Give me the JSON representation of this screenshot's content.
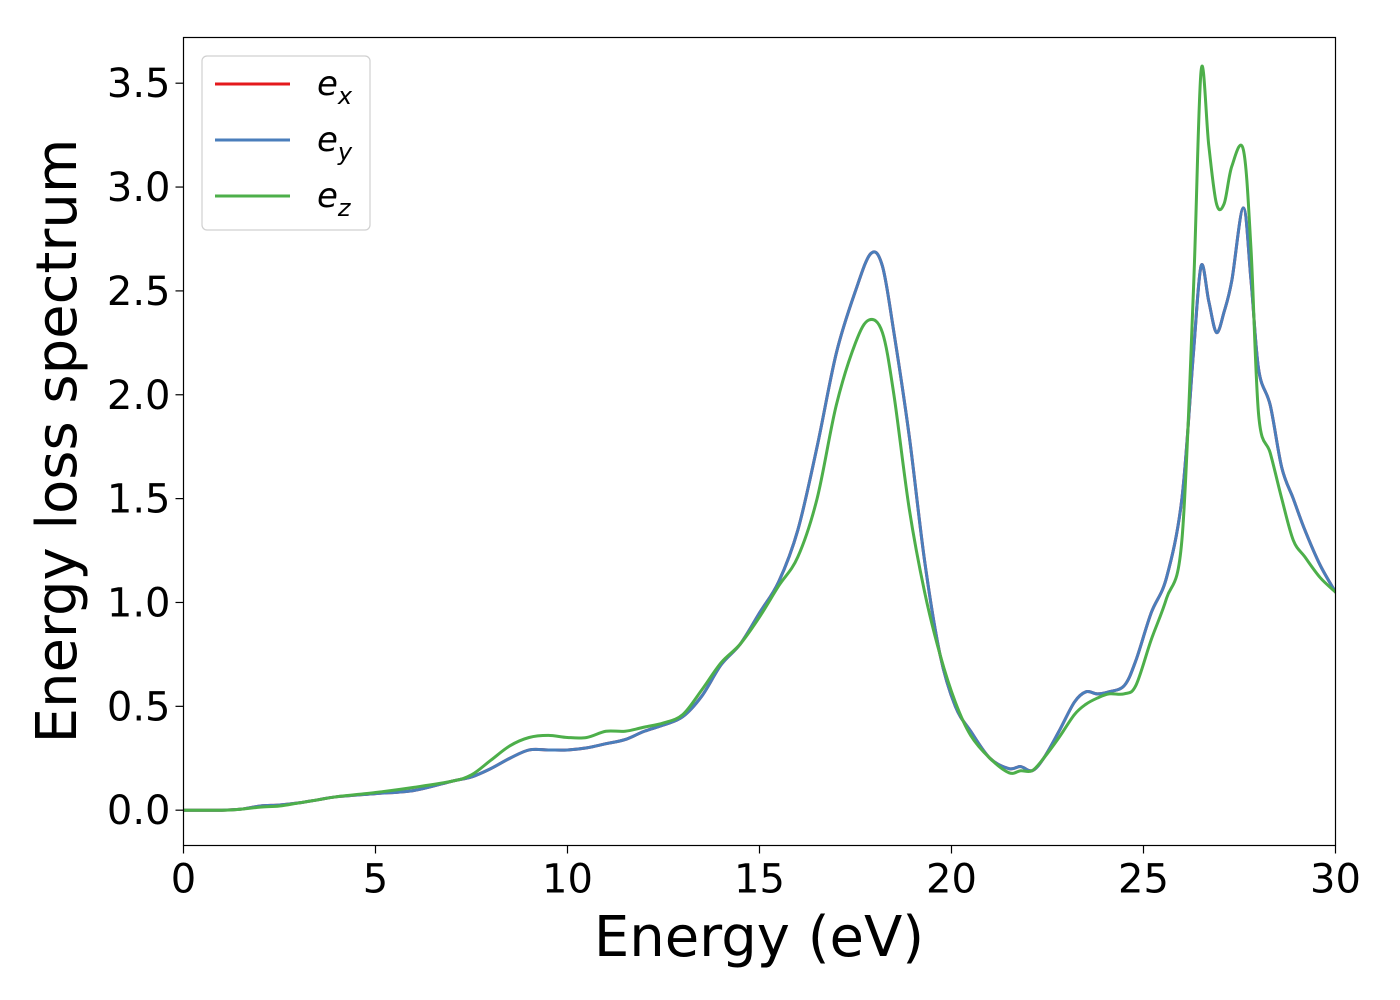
{
  "chart_data": {
    "type": "line",
    "title": "",
    "xlabel": "Energy (eV)",
    "ylabel": "Energy loss spectrum",
    "xlim": [
      0,
      30
    ],
    "ylim": [
      -0.17,
      3.72
    ],
    "xticks": [
      0,
      5,
      10,
      15,
      20,
      25,
      30
    ],
    "yticks": [
      0.0,
      0.5,
      1.0,
      1.5,
      2.0,
      2.5,
      3.0,
      3.5
    ],
    "xtick_labels": [
      "0",
      "5",
      "10",
      "15",
      "20",
      "25",
      "30"
    ],
    "ytick_labels": [
      "0.0",
      "0.5",
      "1.0",
      "1.5",
      "2.0",
      "2.5",
      "3.0",
      "3.5"
    ],
    "grid": false,
    "legend_position": "upper-left",
    "series": [
      {
        "name": "e_x",
        "legend_base": "e",
        "legend_sub": "x",
        "color": "#e41a1c",
        "x": [
          0,
          1,
          1.5,
          2,
          2.5,
          3,
          3.5,
          4,
          5,
          6,
          7,
          7.5,
          8,
          8.5,
          9,
          9.5,
          10,
          10.5,
          11,
          11.5,
          12,
          12.5,
          13,
          13.5,
          14,
          14.5,
          15,
          15.5,
          16,
          16.5,
          17,
          17.5,
          17.9,
          18.2,
          18.5,
          18.9,
          19.3,
          19.7,
          20.1,
          20.5,
          21,
          21.5,
          21.8,
          22.1,
          22.4,
          22.8,
          23.2,
          23.5,
          23.8,
          24.1,
          24.5,
          24.8,
          25.2,
          25.6,
          26,
          26.3,
          26.5,
          26.7,
          26.9,
          27.1,
          27.3,
          27.6,
          27.8,
          28,
          28.3,
          28.6,
          28.9,
          29.2,
          29.6,
          30
        ],
        "values": [
          0,
          0,
          0.005,
          0.02,
          0.025,
          0.035,
          0.05,
          0.065,
          0.08,
          0.095,
          0.14,
          0.16,
          0.2,
          0.25,
          0.29,
          0.29,
          0.29,
          0.3,
          0.32,
          0.34,
          0.38,
          0.41,
          0.45,
          0.55,
          0.7,
          0.8,
          0.95,
          1.1,
          1.35,
          1.75,
          2.2,
          2.5,
          2.68,
          2.62,
          2.3,
          1.8,
          1.2,
          0.75,
          0.5,
          0.38,
          0.25,
          0.2,
          0.21,
          0.19,
          0.25,
          0.38,
          0.52,
          0.57,
          0.56,
          0.57,
          0.6,
          0.72,
          0.95,
          1.12,
          1.5,
          2.2,
          2.62,
          2.45,
          2.3,
          2.4,
          2.55,
          2.9,
          2.55,
          2.12,
          1.95,
          1.65,
          1.5,
          1.35,
          1.18,
          1.05
        ]
      },
      {
        "name": "e_y",
        "legend_base": "e",
        "legend_sub": "y",
        "color": "#4a7ebb",
        "x": [
          0,
          1,
          1.5,
          2,
          2.5,
          3,
          3.5,
          4,
          5,
          6,
          7,
          7.5,
          8,
          8.5,
          9,
          9.5,
          10,
          10.5,
          11,
          11.5,
          12,
          12.5,
          13,
          13.5,
          14,
          14.5,
          15,
          15.5,
          16,
          16.5,
          17,
          17.5,
          17.9,
          18.2,
          18.5,
          18.9,
          19.3,
          19.7,
          20.1,
          20.5,
          21,
          21.5,
          21.8,
          22.1,
          22.4,
          22.8,
          23.2,
          23.5,
          23.8,
          24.1,
          24.5,
          24.8,
          25.2,
          25.6,
          26,
          26.3,
          26.5,
          26.7,
          26.9,
          27.1,
          27.3,
          27.6,
          27.8,
          28,
          28.3,
          28.6,
          28.9,
          29.2,
          29.6,
          30
        ],
        "values": [
          0,
          0,
          0.005,
          0.02,
          0.025,
          0.035,
          0.05,
          0.065,
          0.08,
          0.095,
          0.14,
          0.16,
          0.2,
          0.25,
          0.29,
          0.29,
          0.29,
          0.3,
          0.32,
          0.34,
          0.38,
          0.41,
          0.45,
          0.55,
          0.7,
          0.8,
          0.95,
          1.1,
          1.35,
          1.75,
          2.2,
          2.5,
          2.68,
          2.62,
          2.3,
          1.8,
          1.2,
          0.75,
          0.5,
          0.38,
          0.25,
          0.2,
          0.21,
          0.19,
          0.25,
          0.38,
          0.52,
          0.57,
          0.56,
          0.57,
          0.6,
          0.72,
          0.95,
          1.12,
          1.5,
          2.2,
          2.62,
          2.45,
          2.3,
          2.4,
          2.55,
          2.9,
          2.55,
          2.12,
          1.95,
          1.65,
          1.5,
          1.35,
          1.18,
          1.05
        ]
      },
      {
        "name": "e_z",
        "legend_base": "e",
        "legend_sub": "z",
        "color": "#4daf4a",
        "x": [
          0,
          1,
          1.5,
          2,
          2.5,
          3,
          3.5,
          4,
          5,
          6,
          7,
          7.5,
          8,
          8.5,
          9,
          9.5,
          10,
          10.5,
          11,
          11.5,
          12,
          12.5,
          13,
          13.5,
          14,
          14.5,
          15,
          15.5,
          16,
          16.5,
          17,
          17.5,
          17.85,
          18.2,
          18.5,
          18.9,
          19.3,
          19.7,
          20.1,
          20.5,
          21,
          21.5,
          21.8,
          22.1,
          22.4,
          22.8,
          23.2,
          23.5,
          23.8,
          24.1,
          24.5,
          24.8,
          25.2,
          25.6,
          26,
          26.3,
          26.5,
          26.7,
          26.9,
          27.1,
          27.3,
          27.6,
          27.8,
          28,
          28.3,
          28.6,
          28.9,
          29.2,
          29.6,
          30
        ],
        "values": [
          0,
          0,
          0.005,
          0.015,
          0.02,
          0.035,
          0.05,
          0.065,
          0.085,
          0.11,
          0.14,
          0.17,
          0.24,
          0.31,
          0.35,
          0.36,
          0.35,
          0.35,
          0.38,
          0.38,
          0.4,
          0.42,
          0.46,
          0.58,
          0.71,
          0.8,
          0.93,
          1.08,
          1.22,
          1.5,
          1.95,
          2.25,
          2.36,
          2.3,
          2.0,
          1.45,
          1.05,
          0.75,
          0.52,
          0.36,
          0.25,
          0.18,
          0.19,
          0.19,
          0.25,
          0.35,
          0.46,
          0.51,
          0.54,
          0.56,
          0.56,
          0.6,
          0.82,
          1.02,
          1.3,
          2.5,
          3.56,
          3.2,
          2.92,
          2.92,
          3.1,
          3.18,
          2.7,
          1.9,
          1.72,
          1.5,
          1.3,
          1.22,
          1.12,
          1.05
        ]
      }
    ]
  }
}
